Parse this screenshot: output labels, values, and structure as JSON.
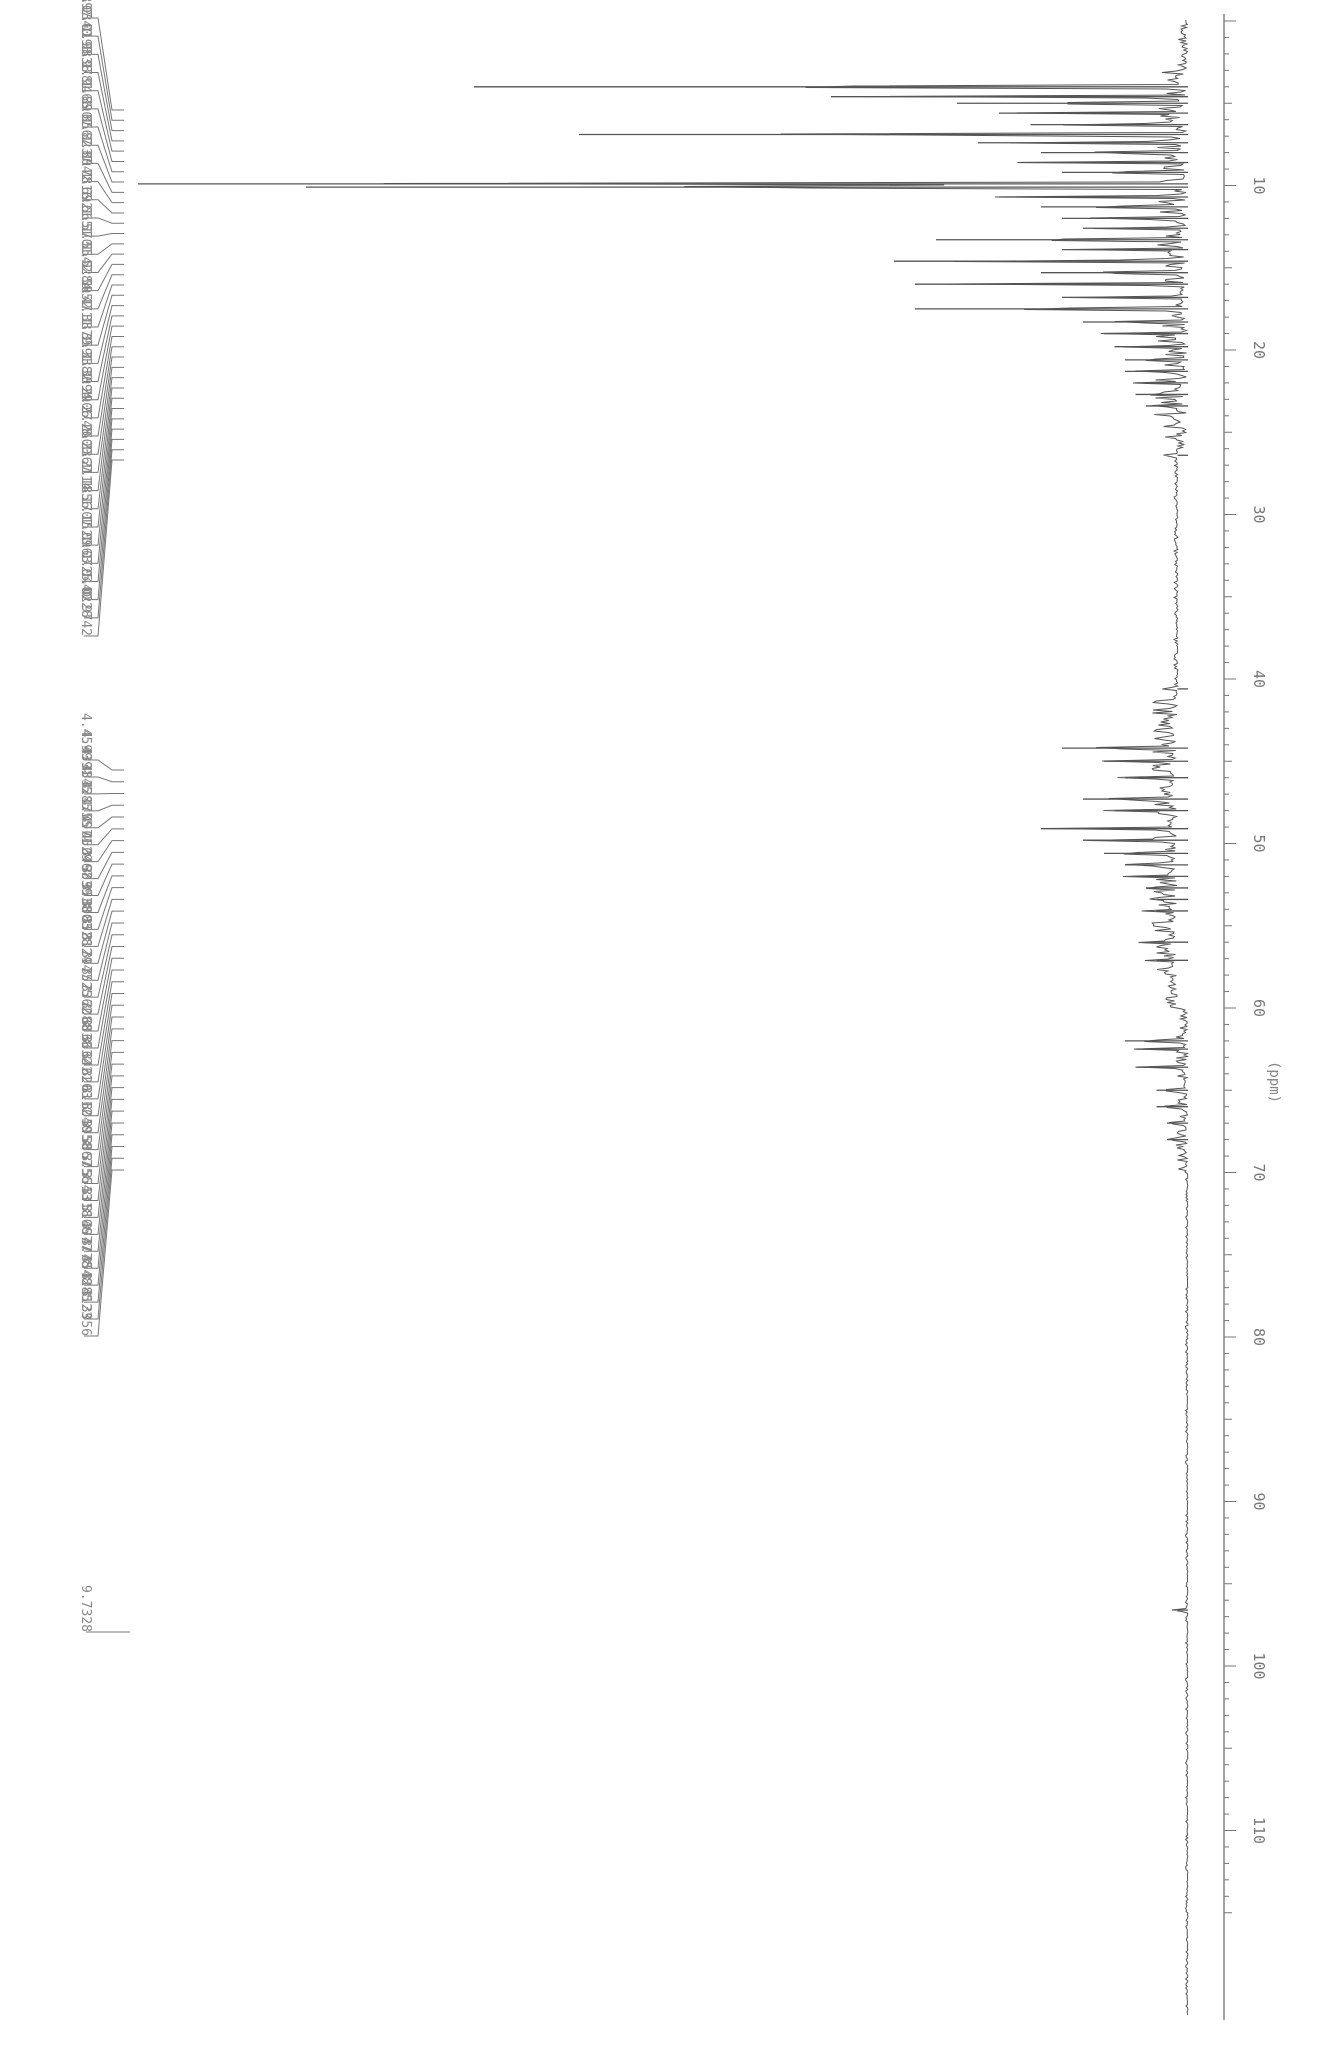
{
  "chart_data": {
    "type": "line",
    "title": "",
    "xlabel": "(ppm)",
    "ylabel": "",
    "orientation": "rotated-90",
    "xlim": [
      0,
      115
    ],
    "x_ticks": [
      "10",
      "20",
      "30",
      "40",
      "50",
      "60",
      "70",
      "80",
      "90",
      "100",
      "110"
    ],
    "grid": false,
    "legend": "none",
    "line_color": "#555555",
    "peaks": [
      {
        "x": 4.0,
        "height": 0.68
      },
      {
        "x": 4.6,
        "height": 0.34
      },
      {
        "x": 5.0,
        "height": 0.22
      },
      {
        "x": 5.6,
        "height": 0.18
      },
      {
        "x": 6.3,
        "height": 0.15
      },
      {
        "x": 6.9,
        "height": 0.58
      },
      {
        "x": 7.4,
        "height": 0.2
      },
      {
        "x": 8.0,
        "height": 0.14
      },
      {
        "x": 8.6,
        "height": 0.16
      },
      {
        "x": 9.2,
        "height": 0.12
      },
      {
        "x": 9.9,
        "height": 1.0
      },
      {
        "x": 10.1,
        "height": 0.84
      },
      {
        "x": 10.7,
        "height": 0.18
      },
      {
        "x": 11.3,
        "height": 0.14
      },
      {
        "x": 12.0,
        "height": 0.12
      },
      {
        "x": 12.6,
        "height": 0.1
      },
      {
        "x": 13.3,
        "height": 0.24
      },
      {
        "x": 13.9,
        "height": 0.12
      },
      {
        "x": 14.6,
        "height": 0.28
      },
      {
        "x": 15.3,
        "height": 0.14
      },
      {
        "x": 16.0,
        "height": 0.26
      },
      {
        "x": 16.8,
        "height": 0.12
      },
      {
        "x": 17.5,
        "height": 0.26
      },
      {
        "x": 18.3,
        "height": 0.1
      },
      {
        "x": 19.0,
        "height": 0.08
      },
      {
        "x": 19.8,
        "height": 0.07
      },
      {
        "x": 20.6,
        "height": 0.06
      },
      {
        "x": 21.3,
        "height": 0.06
      },
      {
        "x": 22.0,
        "height": 0.05
      },
      {
        "x": 22.7,
        "height": 0.05
      },
      {
        "x": 23.4,
        "height": 0.04
      },
      {
        "x": 26.4,
        "height": 0.01
      },
      {
        "x": 40.6,
        "height": 0.01
      },
      {
        "x": 44.2,
        "height": 0.12
      },
      {
        "x": 45.0,
        "height": 0.08
      },
      {
        "x": 46.0,
        "height": 0.06
      },
      {
        "x": 47.3,
        "height": 0.1
      },
      {
        "x": 48.0,
        "height": 0.07
      },
      {
        "x": 49.1,
        "height": 0.14
      },
      {
        "x": 49.8,
        "height": 0.1
      },
      {
        "x": 50.6,
        "height": 0.08
      },
      {
        "x": 51.3,
        "height": 0.06
      },
      {
        "x": 52.0,
        "height": 0.05
      },
      {
        "x": 52.7,
        "height": 0.04
      },
      {
        "x": 53.4,
        "height": 0.03
      },
      {
        "x": 54.1,
        "height": 0.03
      },
      {
        "x": 56.0,
        "height": 0.04
      },
      {
        "x": 57.1,
        "height": 0.03
      },
      {
        "x": 62.0,
        "height": 0.06
      },
      {
        "x": 62.5,
        "height": 0.05
      },
      {
        "x": 63.6,
        "height": 0.05
      },
      {
        "x": 65.0,
        "height": 0.03
      },
      {
        "x": 66.0,
        "height": 0.03
      },
      {
        "x": 67.0,
        "height": 0.02
      },
      {
        "x": 68.0,
        "height": 0.02
      },
      {
        "x": 96.6,
        "height": 0.01
      }
    ],
    "peak_labels_group1": [
      "2.0397",
      "2.0340",
      "2.0193",
      "1.9838",
      "1.9781",
      "1.9466",
      "1.8907",
      "1.8567",
      "1.8237",
      "1.8042",
      "1.7816",
      "1.6921",
      "1.6651",
      "1.5701",
      "1.5542",
      "1.5284",
      "1.5052",
      "1.4711",
      "1.3879",
      "1.3591",
      "1.3382",
      "1.3094",
      "1.2906",
      "1.2748",
      "1.2600",
      "1.2367",
      "1.2114",
      "1.1856",
      "1.1707",
      "1.1520",
      "1.0963",
      "1.0725",
      "1.0440",
      "1.0228",
      "0.9742"
    ],
    "peak_labels_group2": [
      "4.4599",
      "4.4391",
      "4.3845",
      "4.3285",
      "4.1755",
      "4.0971",
      "4.0629",
      "4.0467",
      "3.9839",
      "3.9538",
      "3.8803",
      "3.8528",
      "3.8124",
      "3.7947",
      "3.7525",
      "3.7362",
      "3.7088",
      "3.6838",
      "3.6632",
      "3.6421",
      "3.6203",
      "3.6112",
      "3.6040",
      "3.5958",
      "3.5867",
      "3.5756",
      "3.5543",
      "3.5318",
      "3.5106",
      "3.4977",
      "3.4778",
      "3.4548",
      "3.4285",
      "3.4123",
      "3.3956"
    ],
    "peak_labels_group3": [
      "9.7328"
    ]
  }
}
